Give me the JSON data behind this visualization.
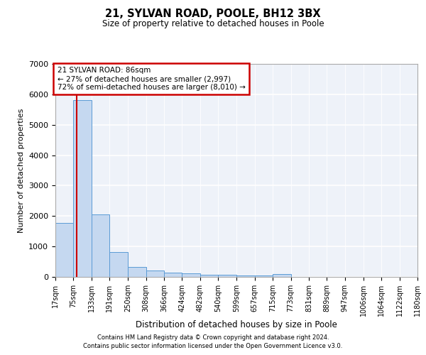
{
  "title": "21, SYLVAN ROAD, POOLE, BH12 3BX",
  "subtitle": "Size of property relative to detached houses in Poole",
  "xlabel": "Distribution of detached houses by size in Poole",
  "ylabel": "Number of detached properties",
  "annotation_box": "21 SYLVAN ROAD: 86sqm\n← 27% of detached houses are smaller (2,997)\n72% of semi-detached houses are larger (8,010) →",
  "property_size": 86,
  "footer_line1": "Contains HM Land Registry data © Crown copyright and database right 2024.",
  "footer_line2": "Contains public sector information licensed under the Open Government Licence v3.0.",
  "bar_edges": [
    17,
    75,
    133,
    191,
    250,
    308,
    366,
    424,
    482,
    540,
    599,
    657,
    715,
    773,
    831,
    889,
    947,
    1006,
    1064,
    1122,
    1180
  ],
  "bar_heights": [
    1780,
    5820,
    2060,
    820,
    330,
    220,
    130,
    110,
    80,
    60,
    55,
    50,
    100,
    0,
    0,
    0,
    0,
    0,
    0,
    0
  ],
  "bar_color": "#c5d8f0",
  "bar_edge_color": "#5b9bd5",
  "vline_color": "#cc0000",
  "annotation_box_color": "#cc0000",
  "background_color": "#eef2f9",
  "grid_color": "#ffffff",
  "ylim": [
    0,
    7000
  ],
  "yticks": [
    0,
    1000,
    2000,
    3000,
    4000,
    5000,
    6000,
    7000
  ]
}
